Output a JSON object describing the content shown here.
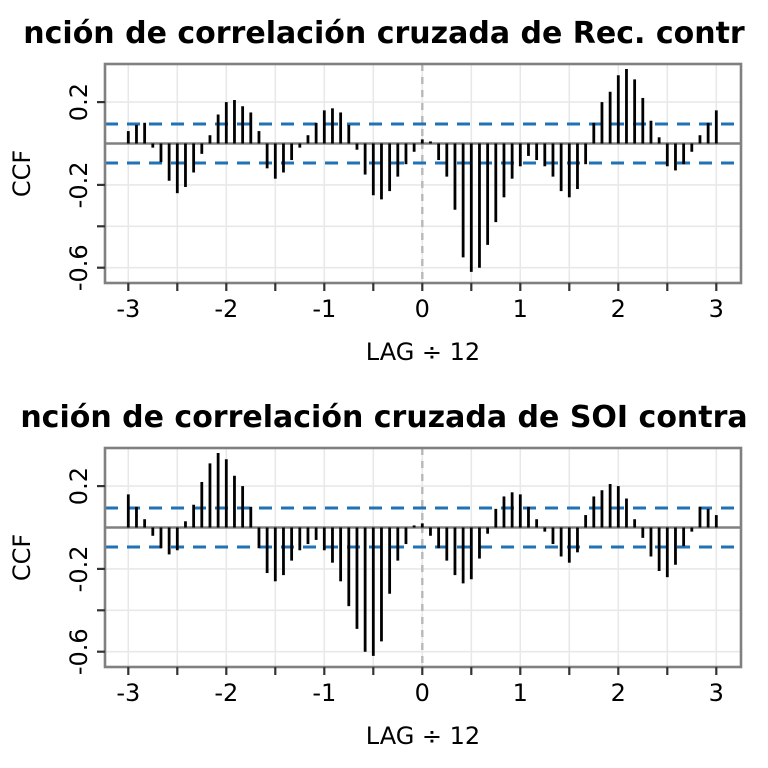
{
  "figure": {
    "description": "Two stacked R-style cross-correlation (CCF) bar plots, titles clipped at both edges",
    "colors": {
      "background": "#ffffff",
      "bar": "#000000",
      "confidence_line": "#2171b5",
      "zero_line": "#808080",
      "plot_border": "#808080",
      "gridline": "#e8e8e8",
      "lag_zero_dashed_line": "#b8b8b8",
      "tick": "#333333",
      "text": "#000000"
    }
  },
  "chart_data": [
    {
      "type": "bar",
      "title": "nción de correlación cruzada de Rec. contr",
      "xlabel": "LAG ÷ 12",
      "ylabel": "CCF",
      "x_unit": "lag in months divided by 12",
      "lag_min_months": -36,
      "lag_max_months": 36,
      "values": [
        0.06,
        0.09,
        0.1,
        -0.02,
        -0.09,
        -0.18,
        -0.24,
        -0.21,
        -0.14,
        -0.05,
        0.04,
        0.14,
        0.2,
        0.21,
        0.18,
        0.15,
        0.06,
        -0.12,
        -0.17,
        -0.14,
        -0.08,
        -0.02,
        0.04,
        0.1,
        0.16,
        0.17,
        0.15,
        0.09,
        -0.03,
        -0.15,
        -0.25,
        -0.27,
        -0.23,
        -0.16,
        -0.1,
        -0.04,
        0.02,
        0.01,
        -0.08,
        -0.16,
        -0.32,
        -0.55,
        -0.62,
        -0.6,
        -0.49,
        -0.38,
        -0.26,
        -0.17,
        -0.11,
        -0.06,
        -0.08,
        -0.11,
        -0.16,
        -0.23,
        -0.26,
        -0.22,
        -0.1,
        0.1,
        0.2,
        0.25,
        0.33,
        0.36,
        0.31,
        0.22,
        0.11,
        0.03,
        -0.11,
        -0.13,
        -0.1,
        -0.04,
        0.04,
        0.1,
        0.16
      ],
      "confidence_bound": 0.094,
      "x_major_ticks": [
        -3,
        -2,
        -1,
        0,
        1,
        2,
        3
      ],
      "x_major_tick_labels": [
        "-3",
        "-2",
        "-1",
        "0",
        "1",
        "2",
        "3"
      ],
      "x_minor_tick_step": 0.5,
      "y_tick_values": [
        0.2,
        -0.2,
        -0.4,
        -0.6
      ],
      "y_tick_labels": [
        "0.2",
        "-0.2",
        "",
        "-0.6"
      ],
      "y_gridlines": [
        0.2,
        0.0,
        -0.2,
        -0.4,
        -0.6
      ],
      "xlim": [
        -3.25,
        3.25
      ],
      "ylim": [
        -0.675,
        0.385
      ],
      "grid": true,
      "legend": "none",
      "zero_reference_line": true,
      "dashed_vertical_line_at_lag0": true
    },
    {
      "type": "bar",
      "title": "nción de correlación cruzada de SOI contra",
      "xlabel": "LAG ÷ 12",
      "ylabel": "CCF",
      "x_unit": "lag in months divided by 12",
      "lag_min_months": -36,
      "lag_max_months": 36,
      "values": [
        0.16,
        0.1,
        0.04,
        -0.04,
        -0.1,
        -0.13,
        -0.11,
        0.03,
        0.11,
        0.22,
        0.31,
        0.36,
        0.33,
        0.25,
        0.2,
        0.1,
        -0.1,
        -0.22,
        -0.26,
        -0.23,
        -0.16,
        -0.11,
        -0.08,
        -0.06,
        -0.11,
        -0.17,
        -0.26,
        -0.38,
        -0.49,
        -0.6,
        -0.62,
        -0.55,
        -0.32,
        -0.16,
        -0.08,
        0.01,
        0.02,
        -0.04,
        -0.1,
        -0.16,
        -0.23,
        -0.27,
        -0.25,
        -0.15,
        -0.03,
        0.09,
        0.15,
        0.17,
        0.16,
        0.1,
        0.04,
        -0.02,
        -0.08,
        -0.14,
        -0.17,
        -0.12,
        0.06,
        0.15,
        0.18,
        0.21,
        0.2,
        0.14,
        0.04,
        -0.05,
        -0.14,
        -0.21,
        -0.24,
        -0.18,
        -0.09,
        -0.02,
        0.1,
        0.09,
        0.06
      ],
      "confidence_bound": 0.094,
      "x_major_ticks": [
        -3,
        -2,
        -1,
        0,
        1,
        2,
        3
      ],
      "x_major_tick_labels": [
        "-3",
        "-2",
        "-1",
        "0",
        "1",
        "2",
        "3"
      ],
      "x_minor_tick_step": 0.5,
      "y_tick_values": [
        0.2,
        -0.2,
        -0.4,
        -0.6
      ],
      "y_tick_labels": [
        "0.2",
        "-0.2",
        "",
        "-0.6"
      ],
      "y_gridlines": [
        0.2,
        0.0,
        -0.2,
        -0.4,
        -0.6
      ],
      "xlim": [
        -3.25,
        3.25
      ],
      "ylim": [
        -0.675,
        0.385
      ],
      "grid": true,
      "legend": "none",
      "zero_reference_line": true,
      "dashed_vertical_line_at_lag0": true
    }
  ]
}
